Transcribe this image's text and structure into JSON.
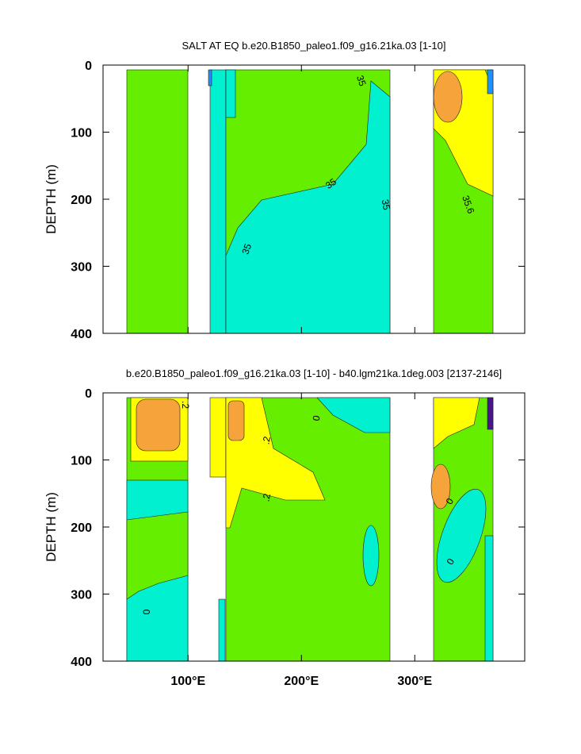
{
  "chart_data": [
    {
      "type": "contour",
      "title": "SALT AT EQ b.e20.B1850_paleo1.f09_g16.21ka.03 [1-10]",
      "ylabel": "DEPTH (m)",
      "xlim": [
        25,
        397
      ],
      "ylim": [
        0,
        400
      ],
      "xticks": [
        100,
        200,
        300
      ],
      "yticks": [
        0,
        100,
        200,
        300,
        400
      ],
      "contour_labels": [
        "35",
        "35",
        "35",
        "35",
        "35.6"
      ]
    },
    {
      "type": "contour",
      "title": "b.e20.B1850_paleo1.f09_g16.21ka.03 [1-10] - b40.lgm21ka.1deg.003 [2137-2146]",
      "ylabel": "DEPTH (m)",
      "xlim": [
        25,
        397
      ],
      "ylim": [
        0,
        400
      ],
      "xticks": [
        {
          "value": 100,
          "label": "100°E"
        },
        {
          "value": 200,
          "label": "200°E"
        },
        {
          "value": 300,
          "label": "300°E"
        }
      ],
      "yticks": [
        0,
        100,
        200,
        300,
        400
      ],
      "contour_labels": [
        ".2",
        ".2",
        ".2",
        "0",
        "0",
        "0",
        "0"
      ]
    }
  ]
}
